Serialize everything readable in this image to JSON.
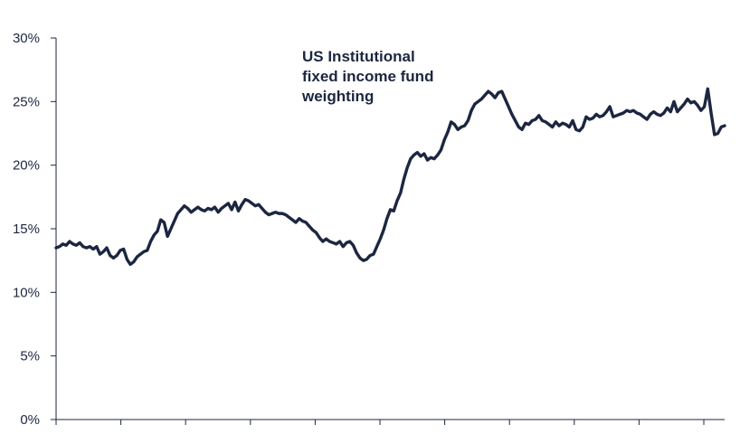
{
  "colors": {
    "line": "#1c2640",
    "text": "#1c2640",
    "axis": "#1c2640"
  },
  "chart_data": {
    "type": "line",
    "title": "",
    "xlabel": "",
    "ylabel": "",
    "ylim": [
      0,
      30
    ],
    "yticks": [
      0,
      5,
      10,
      15,
      20,
      25,
      30
    ],
    "ytick_labels": [
      "0%",
      "5%",
      "10%",
      "15%",
      "20%",
      "25%",
      "30%"
    ],
    "x_tick_count": 11,
    "grid": false,
    "annotation": "US Institutional\nfixed income fund\nweighting",
    "series": [
      {
        "name": "",
        "values": [
          13.5,
          13.6,
          13.8,
          13.7,
          14.0,
          13.8,
          13.7,
          13.9,
          13.6,
          13.5,
          13.6,
          13.4,
          13.6,
          13.0,
          13.2,
          13.5,
          12.9,
          12.7,
          12.9,
          13.3,
          13.4,
          12.6,
          12.2,
          12.4,
          12.8,
          13.0,
          13.2,
          13.3,
          14.0,
          14.5,
          14.8,
          15.7,
          15.5,
          14.4,
          15.0,
          15.6,
          16.2,
          16.5,
          16.8,
          16.6,
          16.3,
          16.5,
          16.7,
          16.5,
          16.4,
          16.6,
          16.5,
          16.7,
          16.3,
          16.6,
          16.8,
          17.0,
          16.5,
          17.1,
          16.4,
          16.9,
          17.3,
          17.2,
          17.0,
          16.8,
          16.9,
          16.6,
          16.3,
          16.1,
          16.2,
          16.3,
          16.2,
          16.2,
          16.1,
          15.9,
          15.7,
          15.5,
          15.8,
          15.6,
          15.5,
          15.2,
          14.9,
          14.7,
          14.3,
          14.0,
          14.2,
          14.0,
          13.9,
          13.8,
          14.0,
          13.6,
          13.9,
          14.0,
          13.7,
          13.1,
          12.7,
          12.5,
          12.6,
          12.9,
          13.0,
          13.6,
          14.2,
          14.9,
          15.8,
          16.5,
          16.4,
          17.2,
          17.8,
          18.9,
          19.8,
          20.5,
          20.8,
          21.0,
          20.7,
          20.9,
          20.4,
          20.6,
          20.5,
          20.8,
          21.2,
          22.0,
          22.6,
          23.4,
          23.2,
          22.8,
          23.0,
          23.1,
          23.5,
          24.3,
          24.8,
          25.0,
          25.2,
          25.5,
          25.8,
          25.6,
          25.3,
          25.7,
          25.8,
          25.2,
          24.6,
          24.0,
          23.5,
          23.0,
          22.8,
          23.3,
          23.2,
          23.5,
          23.6,
          23.9,
          23.5,
          23.4,
          23.2,
          23.0,
          23.4,
          23.1,
          23.3,
          23.2,
          23.0,
          23.5,
          22.8,
          22.7,
          23.0,
          23.8,
          23.6,
          23.7,
          24.0,
          23.8,
          23.9,
          24.2,
          24.6,
          23.8,
          23.9,
          24.0,
          24.1,
          24.3,
          24.2,
          24.3,
          24.1,
          24.0,
          23.8,
          23.6,
          24.0,
          24.2,
          24.0,
          23.9,
          24.1,
          24.5,
          24.2,
          25.0,
          24.2,
          24.5,
          24.8,
          25.2,
          24.9,
          25.0,
          24.7,
          24.3,
          24.6,
          26.0,
          24.1,
          22.4,
          22.5,
          23.0,
          23.1
        ]
      }
    ]
  }
}
